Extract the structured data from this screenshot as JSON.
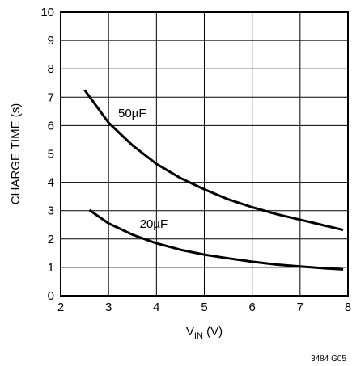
{
  "figure_id": "3484 G05",
  "chart_data": {
    "type": "line",
    "title": "",
    "xlabel": {
      "main": "V",
      "sub": "IN",
      "unit": " (V)"
    },
    "ylabel": "CHARGE TIME (s)",
    "xlim": [
      2,
      8
    ],
    "ylim": [
      0,
      10
    ],
    "xticks": [
      "2",
      "3",
      "4",
      "5",
      "6",
      "7",
      "8"
    ],
    "yticks": [
      "0",
      "1",
      "2",
      "3",
      "4",
      "5",
      "6",
      "7",
      "8",
      "9",
      "10"
    ],
    "grid": true,
    "series": [
      {
        "name": "50µF",
        "x": [
          2.5,
          3.0,
          3.5,
          4.0,
          4.5,
          5.0,
          5.5,
          6.0,
          6.5,
          7.0,
          7.5,
          7.9
        ],
        "y": [
          7.25,
          6.1,
          5.3,
          4.65,
          4.15,
          3.75,
          3.4,
          3.12,
          2.88,
          2.68,
          2.48,
          2.32
        ]
      },
      {
        "name": "20µF",
        "x": [
          2.6,
          3.0,
          3.5,
          4.0,
          4.5,
          5.0,
          5.5,
          6.0,
          6.5,
          7.0,
          7.5,
          7.9
        ],
        "y": [
          3.02,
          2.55,
          2.15,
          1.85,
          1.62,
          1.45,
          1.32,
          1.2,
          1.1,
          1.03,
          0.97,
          0.93
        ]
      }
    ],
    "annotations": [
      {
        "text": "50µF",
        "x": 3.2,
        "y": 6.3
      },
      {
        "text": "20µF",
        "x": 3.65,
        "y": 2.4
      }
    ]
  }
}
